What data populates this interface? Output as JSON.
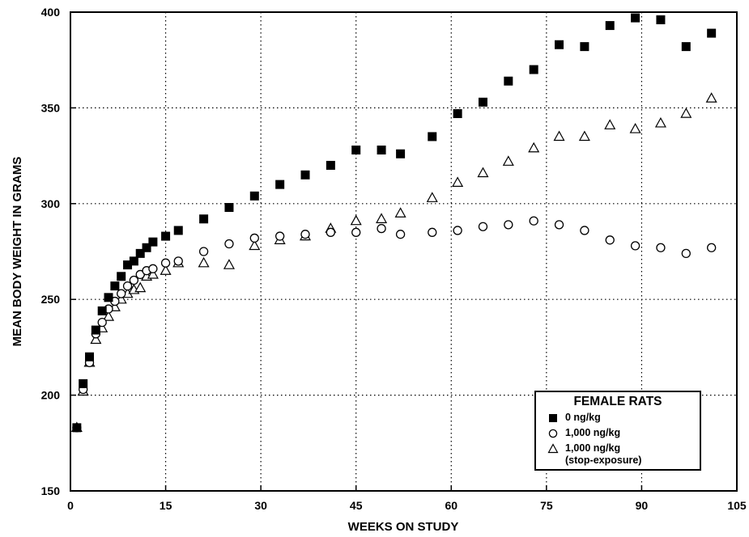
{
  "chart_data": {
    "type": "scatter",
    "xlabel": "WEEKS ON STUDY",
    "ylabel": "MEAN BODY WEIGHT IN GRAMS",
    "xlim": [
      0,
      105
    ],
    "ylim": [
      150,
      400
    ],
    "xticks": [
      0,
      15,
      30,
      45,
      60,
      75,
      90,
      105
    ],
    "yticks": [
      150,
      200,
      250,
      300,
      350,
      400
    ],
    "grid": "dotted, interior ticks only",
    "legend": {
      "title": "FEMALE RATS",
      "placement": "bottom-right",
      "entries": [
        "0 ng/kg",
        "1,000 ng/kg",
        "1,000 ng/kg",
        "(stop-exposure)"
      ]
    },
    "series": [
      {
        "name": "0 ng/kg",
        "marker": "filled-square",
        "x": [
          1,
          2,
          3,
          4,
          5,
          6,
          7,
          8,
          9,
          10,
          11,
          12,
          13,
          15,
          17,
          21,
          25,
          29,
          33,
          37,
          41,
          45,
          49,
          52,
          57,
          61,
          65,
          69,
          73,
          77,
          81,
          85,
          89,
          93,
          97,
          101
        ],
        "y": [
          183,
          206,
          220,
          234,
          244,
          251,
          257,
          262,
          268,
          270,
          274,
          277,
          280,
          283,
          286,
          292,
          298,
          304,
          310,
          315,
          320,
          328,
          328,
          326,
          335,
          347,
          353,
          364,
          370,
          383,
          382,
          393,
          397,
          396,
          382,
          389
        ]
      },
      {
        "name": "1,000 ng/kg",
        "marker": "open-circle",
        "x": [
          1,
          2,
          3,
          4,
          5,
          6,
          7,
          8,
          9,
          10,
          11,
          12,
          13,
          15,
          17,
          21,
          25,
          29,
          33,
          37,
          41,
          45,
          49,
          52,
          57,
          61,
          65,
          69,
          73,
          77,
          81,
          85,
          89,
          93,
          97,
          101
        ],
        "y": [
          183,
          203,
          217,
          232,
          238,
          245,
          249,
          253,
          257,
          260,
          263,
          265,
          266,
          269,
          270,
          275,
          279,
          282,
          283,
          284,
          285,
          285,
          287,
          284,
          285,
          286,
          288,
          289,
          291,
          289,
          286,
          281,
          278,
          277,
          274,
          277
        ]
      },
      {
        "name": "1,000 ng/kg (stop-exposure)",
        "marker": "open-triangle",
        "x": [
          1,
          2,
          3,
          4,
          5,
          6,
          7,
          8,
          9,
          10,
          11,
          12,
          13,
          15,
          17,
          21,
          25,
          29,
          33,
          37,
          41,
          45,
          49,
          52,
          57,
          61,
          65,
          69,
          73,
          77,
          81,
          85,
          89,
          93,
          97,
          101
        ],
        "y": [
          183,
          202,
          217,
          229,
          235,
          241,
          246,
          250,
          253,
          255,
          256,
          262,
          263,
          265,
          269,
          269,
          268,
          278,
          281,
          283,
          287,
          291,
          292,
          295,
          303,
          311,
          316,
          322,
          329,
          335,
          335,
          341,
          339,
          342,
          347,
          355
        ]
      }
    ]
  }
}
